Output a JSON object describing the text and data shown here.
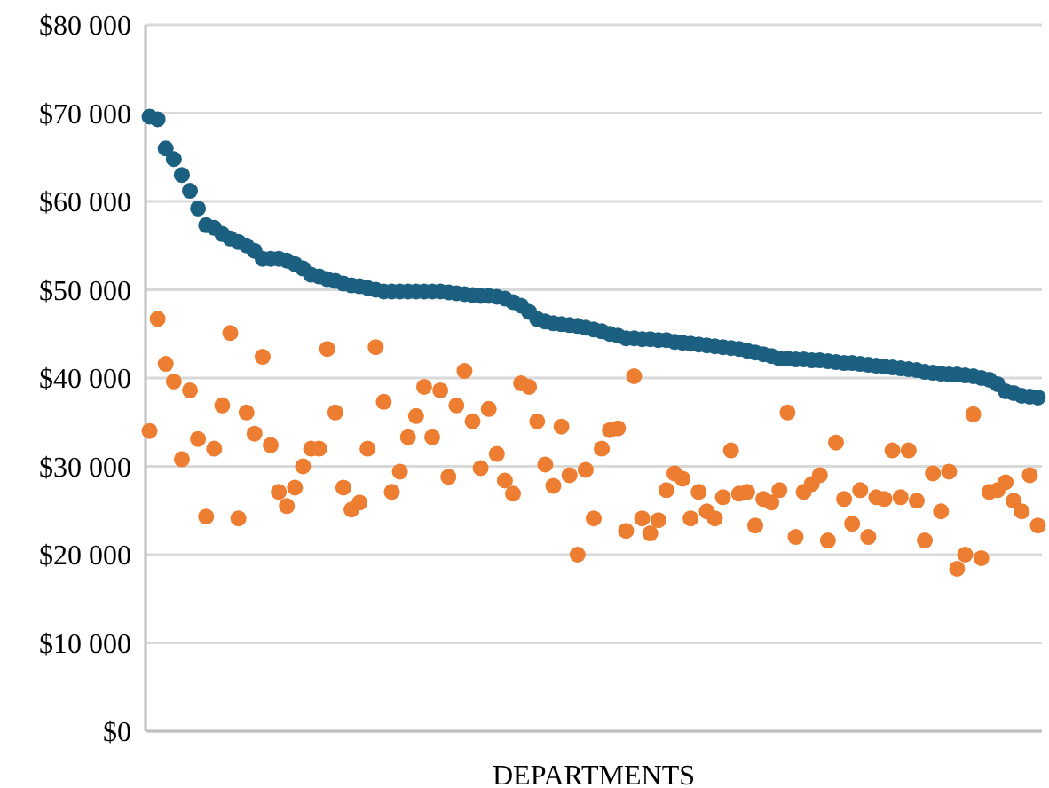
{
  "chart_data": {
    "type": "scatter",
    "xlabel": "DEPARTMENTS",
    "categories": [
      null,
      null,
      null,
      null,
      null,
      null,
      null,
      null,
      null,
      null,
      null,
      null,
      null,
      null,
      null,
      null,
      null,
      null,
      null,
      null,
      null,
      null,
      null,
      null,
      null,
      null,
      null,
      null,
      null,
      null,
      null,
      null,
      null,
      null,
      null,
      null,
      null,
      null,
      null,
      null,
      null,
      null,
      null,
      null,
      null,
      null,
      null,
      null,
      null,
      null,
      null,
      null,
      null,
      null,
      null,
      null,
      null,
      null,
      null,
      null,
      null,
      null,
      null,
      null,
      null,
      null,
      null,
      null,
      null,
      null,
      null,
      null,
      null,
      null,
      null,
      null,
      null,
      null,
      null,
      null,
      null,
      null,
      null,
      null,
      null,
      null,
      null,
      null,
      null,
      null,
      null,
      null,
      null,
      null,
      null,
      null,
      null,
      null,
      null,
      null,
      null,
      null,
      null,
      null,
      null,
      null,
      null,
      null,
      null,
      null,
      null
    ],
    "series": [
      {
        "color": "#1b5f81",
        "values": [
          69600,
          69300,
          66000,
          64800,
          63000,
          61200,
          59200,
          57300,
          57000,
          56300,
          55800,
          55400,
          55000,
          54400,
          53500,
          53500,
          53500,
          53300,
          52900,
          52400,
          51700,
          51500,
          51200,
          51000,
          50700,
          50500,
          50400,
          50200,
          50000,
          49800,
          49800,
          49800,
          49800,
          49800,
          49800,
          49800,
          49800,
          49700,
          49600,
          49500,
          49400,
          49300,
          49300,
          49200,
          49000,
          48600,
          48200,
          47500,
          46700,
          46400,
          46200,
          46100,
          46000,
          45900,
          45700,
          45500,
          45300,
          45000,
          44800,
          44500,
          44500,
          44400,
          44400,
          44300,
          44300,
          44100,
          44000,
          43900,
          43800,
          43700,
          43600,
          43500,
          43400,
          43300,
          43100,
          42900,
          42700,
          42500,
          42200,
          42200,
          42100,
          42100,
          42000,
          42000,
          41900,
          41800,
          41700,
          41700,
          41600,
          41500,
          41400,
          41300,
          41200,
          41100,
          41000,
          40900,
          40700,
          40600,
          40500,
          40400,
          40400,
          40300,
          40200,
          40000,
          39800,
          39300,
          38500,
          38300,
          38000,
          37900,
          37800
        ]
      },
      {
        "color": "#ed7d31",
        "values": [
          34000,
          46700,
          41600,
          39600,
          30800,
          38600,
          33100,
          24300,
          32000,
          36900,
          45100,
          24100,
          36100,
          33700,
          42400,
          32400,
          27100,
          25500,
          27600,
          30000,
          32000,
          32000,
          43300,
          36100,
          27600,
          25100,
          25900,
          32000,
          43500,
          37300,
          27100,
          29400,
          33300,
          35700,
          39000,
          33300,
          38600,
          28800,
          36900,
          40800,
          35100,
          29800,
          36500,
          31400,
          28400,
          26900,
          39400,
          39000,
          35100,
          30200,
          27800,
          34500,
          29000,
          20000,
          29600,
          24100,
          32000,
          34100,
          34300,
          22700,
          40200,
          24100,
          22400,
          23900,
          27300,
          29200,
          28600,
          24100,
          27100,
          24900,
          24100,
          26500,
          31800,
          26900,
          27100,
          23300,
          26300,
          25900,
          27300,
          36100,
          22000,
          27100,
          28000,
          29000,
          21600,
          32700,
          26300,
          23500,
          27300,
          22000,
          26500,
          26300,
          31800,
          26500,
          31800,
          26100,
          21600,
          29200,
          24900,
          29400,
          18400,
          20000,
          35900,
          19600,
          27100,
          27300,
          28200,
          26100,
          24900,
          29000,
          23300
        ]
      }
    ],
    "ylim": [
      0,
      80000
    ],
    "yticks": [
      {
        "value": 0,
        "label": "$0"
      },
      {
        "value": 10000,
        "label": "$10 000"
      },
      {
        "value": 20000,
        "label": "$20 000"
      },
      {
        "value": 30000,
        "label": "$30 000"
      },
      {
        "value": 40000,
        "label": "$40 000"
      },
      {
        "value": 50000,
        "label": "$50 000"
      },
      {
        "value": 60000,
        "label": "$60 000"
      },
      {
        "value": 70000,
        "label": "$70 000"
      },
      {
        "value": 80000,
        "label": "$80 000"
      }
    ],
    "grid": "y",
    "marker": "circle",
    "tick_labels": "y"
  }
}
